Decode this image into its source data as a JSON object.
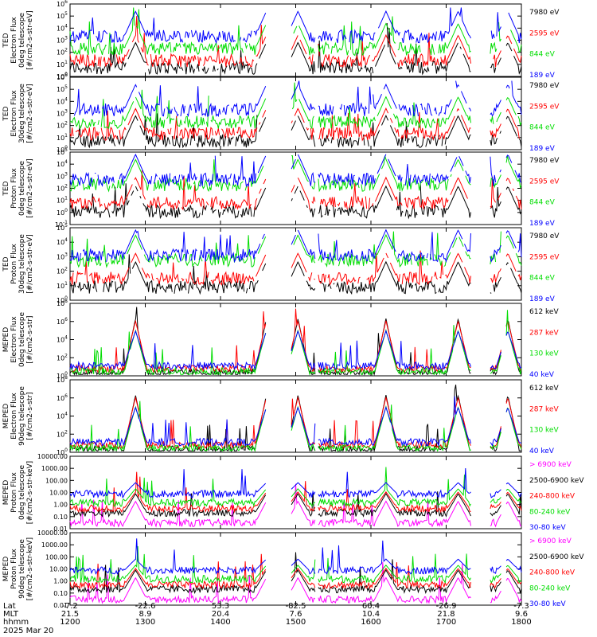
{
  "chart_data": {
    "type": "line",
    "date": "2025 Mar 20",
    "x_rows": [
      {
        "name": "Lat",
        "values": [
          "-7.2",
          "-22.6",
          "53.3",
          "-82.5",
          "60.4",
          "-26.9",
          "-7.3"
        ]
      },
      {
        "name": "MLT",
        "values": [
          "21.5",
          "8.9",
          "20.4",
          "7.6",
          "10.4",
          "21.8",
          "9.6"
        ]
      },
      {
        "name": "hhmm",
        "values": [
          "1200",
          "1300",
          "1400",
          "1500",
          "1600",
          "1700",
          "1800"
        ]
      }
    ],
    "panels": [
      {
        "ylabel": [
          "TED",
          "Electron Flux",
          "0deg telescope",
          "[#/cm2-s-str-eV]"
        ],
        "ytick_labels": [
          "10^0",
          "10^1",
          "10^2",
          "10^3",
          "10^4",
          "10^5",
          "10^6"
        ],
        "legend": [
          {
            "label": "7980 eV",
            "color": "#000000"
          },
          {
            "label": "2595 eV",
            "color": "#ff0000"
          },
          {
            "label": "844 eV",
            "color": "#00dd00"
          },
          {
            "label": "189 eV",
            "color": "#0000ff"
          }
        ]
      },
      {
        "ylabel": [
          "TED",
          "Electron Flux",
          "30deg telescope",
          "[#/cm2-s-str-eV]"
        ],
        "ytick_labels": [
          "10^0",
          "10^1",
          "10^2",
          "10^3",
          "10^4",
          "10^5",
          "10^6"
        ],
        "legend": [
          {
            "label": "7980 eV",
            "color": "#000000"
          },
          {
            "label": "2595 eV",
            "color": "#ff0000"
          },
          {
            "label": "844 eV",
            "color": "#00dd00"
          },
          {
            "label": "189 eV",
            "color": "#0000ff"
          }
        ]
      },
      {
        "ylabel": [
          "TED",
          "Proton Flux",
          "0deg telescope",
          "[#/cm2-s-str-eV]"
        ],
        "ytick_labels": [
          "10^-1",
          "10^0",
          "10^1",
          "10^2",
          "10^3",
          "10^4",
          "10^5"
        ],
        "legend": [
          {
            "label": "7980 eV",
            "color": "#000000"
          },
          {
            "label": "2595 eV",
            "color": "#ff0000"
          },
          {
            "label": "844 eV",
            "color": "#00dd00"
          },
          {
            "label": "189 eV",
            "color": "#0000ff"
          }
        ]
      },
      {
        "ylabel": [
          "TED",
          "Proton Flux",
          "30deg telescope",
          "[#/cm2-s-str-eV]"
        ],
        "ytick_labels": [
          "10^0",
          "10^1",
          "10^2",
          "10^3",
          "10^4",
          "10^5"
        ],
        "legend": [
          {
            "label": "7980 eV",
            "color": "#000000"
          },
          {
            "label": "2595 eV",
            "color": "#ff0000"
          },
          {
            "label": "844 eV",
            "color": "#00dd00"
          },
          {
            "label": "189 eV",
            "color": "#0000ff"
          }
        ]
      },
      {
        "ylabel": [
          "MEPED",
          "Electron Flux",
          "0deg telescope",
          "[#/cm2-s-str]"
        ],
        "ytick_labels": [
          "10^0",
          "10^2",
          "10^4",
          "10^6",
          "10^8"
        ],
        "legend": [
          {
            "label": "612 keV",
            "color": "#000000"
          },
          {
            "label": "287 keV",
            "color": "#ff0000"
          },
          {
            "label": "130 keV",
            "color": "#00dd00"
          },
          {
            "label": "40 keV",
            "color": "#0000ff"
          }
        ]
      },
      {
        "ylabel": [
          "MEPED",
          "Electron Flux",
          "90deg telescope",
          "[#/cm2-s-str]"
        ],
        "ytick_labels": [
          "10^0",
          "10^2",
          "10^4",
          "10^6",
          "10^8"
        ],
        "legend": [
          {
            "label": "612 keV",
            "color": "#000000"
          },
          {
            "label": "287 keV",
            "color": "#ff0000"
          },
          {
            "label": "130 keV",
            "color": "#00dd00"
          },
          {
            "label": "40 keV",
            "color": "#0000ff"
          }
        ]
      },
      {
        "ylabel": [
          "MEPED",
          "Proton Flux",
          "0deg telescope",
          "[#/cm2-s-str-keV]"
        ],
        "ytick_labels": [
          "0.01",
          "0.10",
          "1.00",
          "10.00",
          "100.00",
          "1000.00",
          "10000.00"
        ],
        "legend": [
          {
            "label": "> 6900 keV",
            "color": "#ff00ff"
          },
          {
            "label": "2500-6900 keV",
            "color": "#000000"
          },
          {
            "label": "240-800 keV",
            "color": "#ff0000"
          },
          {
            "label": "80-240 keV",
            "color": "#00dd00"
          },
          {
            "label": "30-80 keV",
            "color": "#0000ff"
          }
        ]
      },
      {
        "ylabel": [
          "MEPED",
          "Proton Flux",
          "90deg telescope",
          "[#/cm2-s-str-keV]"
        ],
        "ytick_labels": [
          "0.01",
          "0.10",
          "1.00",
          "10.00",
          "100.00",
          "1000.00",
          "10000.00"
        ],
        "legend": [
          {
            "label": "> 6900 keV",
            "color": "#ff00ff"
          },
          {
            "label": "2500-6900 keV",
            "color": "#000000"
          },
          {
            "label": "240-800 keV",
            "color": "#ff0000"
          },
          {
            "label": "80-240 keV",
            "color": "#00dd00"
          },
          {
            "label": "30-80 keV",
            "color": "#0000ff"
          }
        ]
      }
    ],
    "pass_centers_hhmm": [
      "1252",
      "1428",
      "1500",
      "1618"
    ],
    "data_gaps_hhmm": [
      [
        "1326",
        "1355"
      ],
      [
        "1650",
        "1728"
      ]
    ]
  }
}
